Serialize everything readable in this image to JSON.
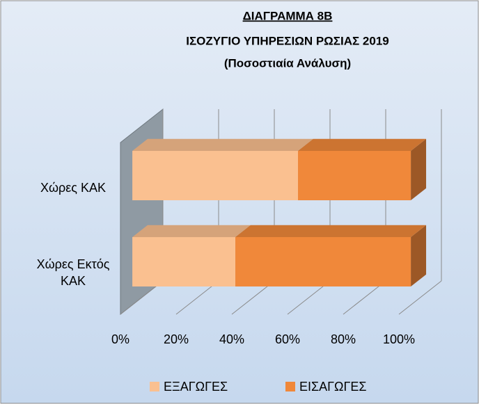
{
  "chart_data": {
    "type": "bar3d_stacked_horizontal",
    "title": "ΔΙΑΓΡΑΜΜΑ 8Β",
    "subtitle": [
      "ΙΣΟΖΥΓΙΟ ΥΠΗΡΕΣΙΩΝ ΡΩΣΙΑΣ 2019",
      "(Ποσοστιαία Ανάλυση)"
    ],
    "categories": [
      "Χώρες ΚΑΚ",
      "Χώρες Εκτός ΚΑΚ"
    ],
    "series": [
      {
        "name": "ΕΞΑΓΩΓΕΣ",
        "color": "#fac090",
        "values": [
          59.5,
          37
        ]
      },
      {
        "name": "ΕΙΣΑΓΩΓΕΣ",
        "color": "#f0883a",
        "values": [
          40.5,
          63
        ]
      }
    ],
    "xlim": [
      0,
      100
    ],
    "xticks": [
      {
        "value": 0,
        "label": "0%"
      },
      {
        "value": 20,
        "label": "20%"
      },
      {
        "value": 40,
        "label": "40%"
      },
      {
        "value": 60,
        "label": "60%"
      },
      {
        "value": 80,
        "label": "80%"
      },
      {
        "value": 100,
        "label": "100%"
      }
    ],
    "grid": true,
    "legend": "bottom"
  }
}
